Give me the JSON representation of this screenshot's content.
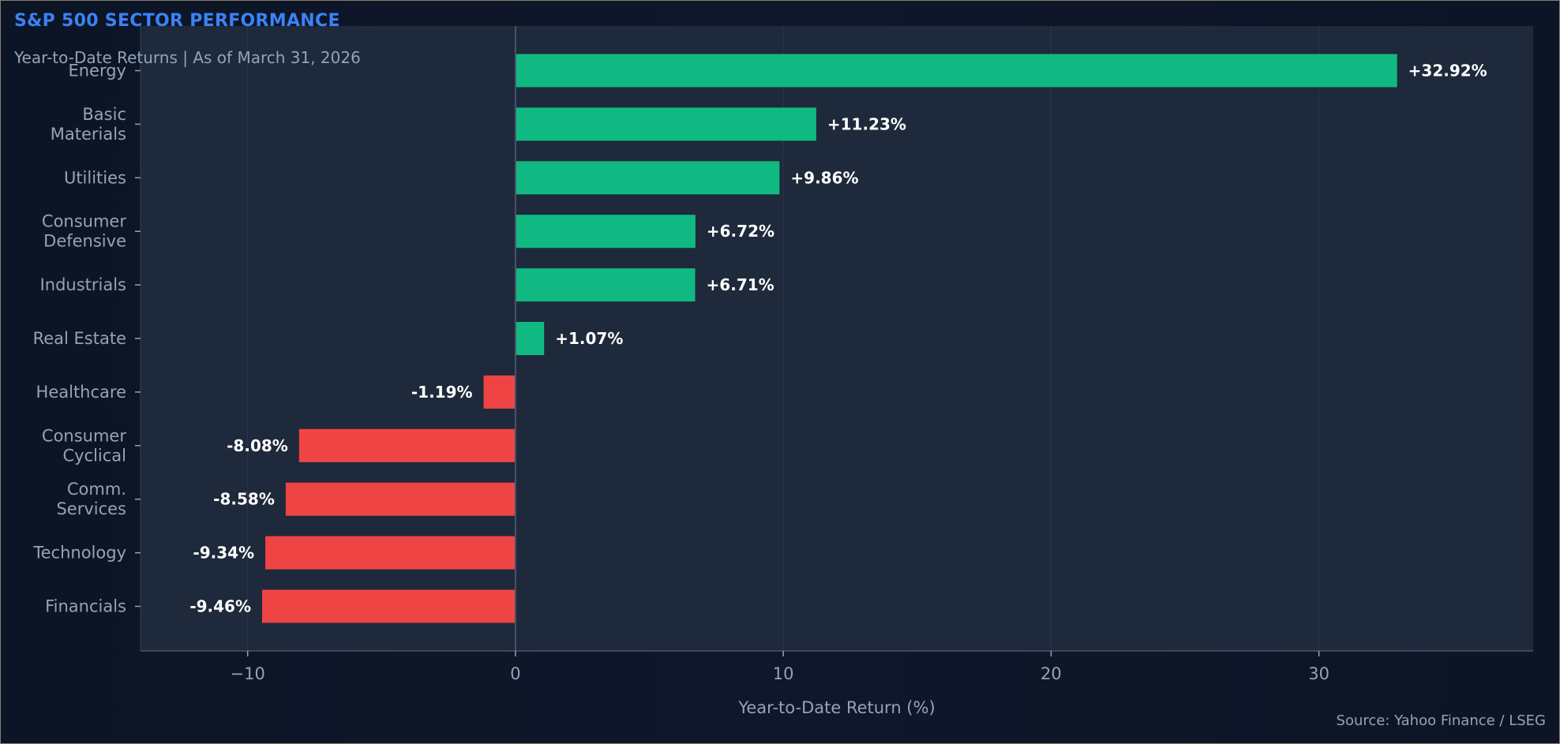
{
  "chart_data": {
    "type": "bar",
    "orientation": "horizontal",
    "title": "S&P 500 SECTOR PERFORMANCE",
    "subtitle": "Year-to-Date Returns  |  As of March 31, 2026",
    "xlabel": "Year-to-Date Return (%)",
    "ylabel": "",
    "source": "Source: Yahoo Finance / LSEG",
    "xlim": [
      -14,
      38
    ],
    "xticks": [
      -10,
      0,
      10,
      20,
      30
    ],
    "xtick_labels": [
      "−10",
      "0",
      "10",
      "20",
      "30"
    ],
    "grid": true,
    "categories": [
      [
        "Energy"
      ],
      [
        "Basic",
        "Materials"
      ],
      [
        "Utilities"
      ],
      [
        "Consumer",
        "Defensive"
      ],
      [
        "Industrials"
      ],
      [
        "Real Estate"
      ],
      [
        "Healthcare"
      ],
      [
        "Consumer",
        "Cyclical"
      ],
      [
        "Comm.",
        "Services"
      ],
      [
        "Technology"
      ],
      [
        "Financials"
      ]
    ],
    "values": [
      32.92,
      11.23,
      9.86,
      6.72,
      6.71,
      1.07,
      -1.19,
      -8.08,
      -8.58,
      -9.34,
      -9.46
    ],
    "value_labels": [
      "+32.92%",
      "+11.23%",
      "+9.86%",
      "+6.72%",
      "+6.71%",
      "+1.07%",
      "-1.19%",
      "-8.08%",
      "-8.58%",
      "-9.34%",
      "-9.46%"
    ],
    "colors": {
      "positive": "#10b981",
      "negative": "#ef4444",
      "plot_bg": "#1e293b",
      "title": "#3b82f6",
      "text_muted": "#94a3b8",
      "label": "#ffffff"
    }
  }
}
